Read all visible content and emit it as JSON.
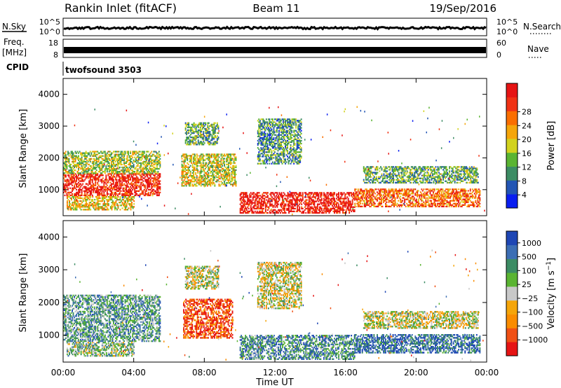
{
  "header": {
    "station": "Rankin Inlet (fitACF)",
    "beam": "Beam 11",
    "date": "19/Sep/2016"
  },
  "strip_panels": {
    "nsky_label": "N.Sky",
    "nsearch_label": "N.Search",
    "nsky_ticks": [
      "10^5",
      "10^0"
    ],
    "nsky_right_ticks": [
      "10^5",
      "10^0"
    ],
    "freq_label": [
      "Freq.",
      "[MHz]"
    ],
    "freq_ticks": [
      "18",
      "8"
    ],
    "nave_label": "Nave",
    "nave_ticks": [
      "60",
      "0"
    ],
    "cpid_label": "CPID",
    "cpid_value": "twofsound 3503"
  },
  "colors": {
    "power_scale": [
      "#0a1ef0",
      "#2356b4",
      "#3c8c64",
      "#5ab432",
      "#d2d21e",
      "#f5a50a",
      "#fa6e00",
      "#f03214",
      "#e61414"
    ],
    "velocity_scale": [
      "#1e46b4",
      "#3c6eb4",
      "#3c8c64",
      "#5ab432",
      "#c8c8c8",
      "#f5a50a",
      "#fa8c00",
      "#f05014",
      "#e61414"
    ]
  },
  "chart_data": [
    {
      "type": "heatmap",
      "title": "Power",
      "xlabel": "Time UT",
      "ylabel": "Slant Range [km]",
      "x_ticks": [
        "00:00",
        "04:00",
        "08:00",
        "12:00",
        "16:00",
        "20:00",
        "00:00"
      ],
      "y_ticks": [
        1000,
        2000,
        3000,
        4000
      ],
      "xlim_hours": [
        0,
        24
      ],
      "ylim_km": [
        180,
        4500
      ],
      "colorbar": {
        "label": "Power [dB]",
        "ticks": [
          "4",
          "8",
          "12",
          "16",
          "20",
          "24",
          "28"
        ],
        "range": [
          0,
          30
        ]
      },
      "regions": [
        {
          "t0": 0.0,
          "t1": 5.5,
          "r0": 800,
          "r1": 1500,
          "level": 0.9
        },
        {
          "t0": 0.0,
          "t1": 5.5,
          "r0": 1500,
          "r1": 2200,
          "level": 0.45
        },
        {
          "t0": 0.2,
          "t1": 4.0,
          "r0": 350,
          "r1": 800,
          "level": 0.55
        },
        {
          "t0": 6.7,
          "t1": 9.8,
          "r0": 1100,
          "r1": 2100,
          "level": 0.5
        },
        {
          "t0": 6.9,
          "t1": 8.8,
          "r0": 2400,
          "r1": 3100,
          "level": 0.35
        },
        {
          "t0": 10.0,
          "t1": 16.5,
          "r0": 250,
          "r1": 900,
          "level": 0.95
        },
        {
          "t0": 11.0,
          "t1": 13.5,
          "r0": 1800,
          "r1": 3200,
          "level": 0.3
        },
        {
          "t0": 16.5,
          "t1": 23.6,
          "r0": 450,
          "r1": 1000,
          "level": 0.75
        },
        {
          "t0": 17.0,
          "t1": 23.5,
          "r0": 1200,
          "r1": 1700,
          "level": 0.35
        }
      ]
    },
    {
      "type": "heatmap",
      "title": "Velocity",
      "xlabel": "Time UT",
      "ylabel": "Slant Range [km]",
      "x_ticks": [
        "00:00",
        "04:00",
        "08:00",
        "12:00",
        "16:00",
        "20:00",
        "00:00"
      ],
      "y_ticks": [
        1000,
        2000,
        3000,
        4000
      ],
      "xlim_hours": [
        0,
        24
      ],
      "ylim_km": [
        180,
        4500
      ],
      "colorbar": {
        "label": "Velocity [m s^-1]",
        "ticks": [
          "1000",
          "500",
          "100",
          "25",
          "−25",
          "−100",
          "−500",
          "−1000"
        ],
        "range": [
          -1000,
          1000
        ]
      },
      "regions": [
        {
          "t0": 0.0,
          "t1": 5.5,
          "r0": 800,
          "r1": 2200,
          "level": 0.3
        },
        {
          "t0": 0.2,
          "t1": 4.0,
          "r0": 350,
          "r1": 800,
          "level": 0.4
        },
        {
          "t0": 6.8,
          "t1": 9.6,
          "r0": 900,
          "r1": 2100,
          "level": 0.85
        },
        {
          "t0": 6.9,
          "t1": 8.8,
          "r0": 2400,
          "r1": 3100,
          "level": 0.5
        },
        {
          "t0": 10.0,
          "t1": 16.5,
          "r0": 250,
          "r1": 1000,
          "level": 0.25
        },
        {
          "t0": 11.0,
          "t1": 13.5,
          "r0": 1800,
          "r1": 3200,
          "level": 0.5
        },
        {
          "t0": 16.5,
          "t1": 23.6,
          "r0": 450,
          "r1": 1000,
          "level": 0.15
        },
        {
          "t0": 17.0,
          "t1": 23.5,
          "r0": 1200,
          "r1": 1700,
          "level": 0.5
        }
      ]
    }
  ]
}
